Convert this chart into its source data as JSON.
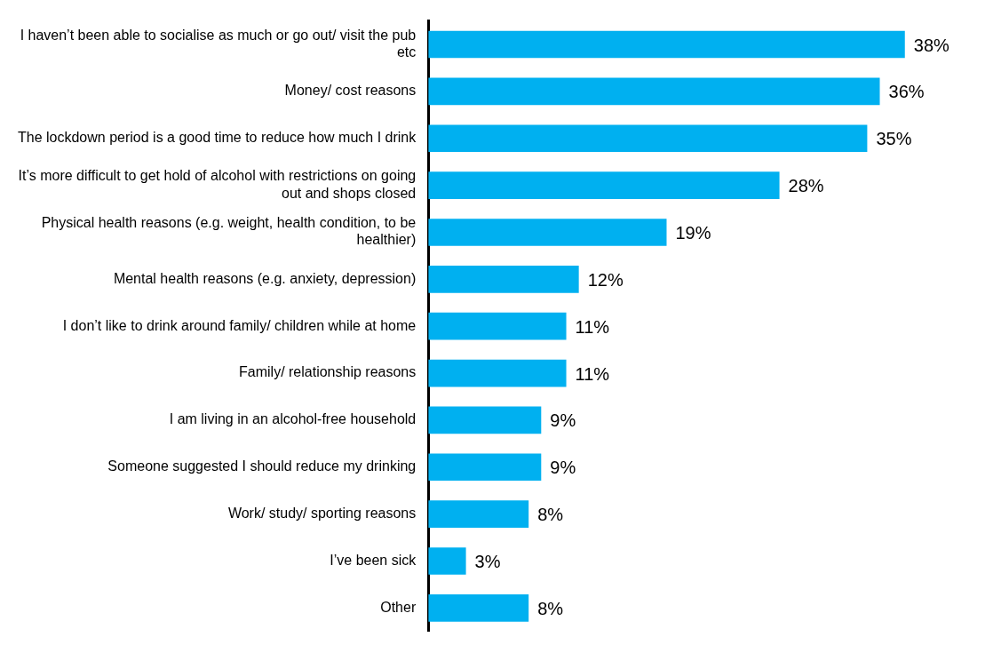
{
  "chart_data": {
    "type": "bar",
    "orientation": "horizontal",
    "categories": [
      "I haven’t been able to socialise as much or go out/ visit the pub etc",
      "Money/ cost reasons",
      "The lockdown period is a good time to reduce how much I drink",
      "It’s more difficult to get hold of alcohol with restrictions on going out and shops closed",
      "Physical health reasons (e.g. weight, health condition, to be healthier)",
      "Mental health reasons (e.g. anxiety, depression)",
      "I don’t like to drink around family/ children while at home",
      "Family/ relationship reasons",
      "I am living in an alcohol-free household",
      "Someone suggested I should reduce my drinking",
      "Work/ study/ sporting reasons",
      "I’ve been sick",
      "Other"
    ],
    "values": [
      38,
      36,
      35,
      28,
      19,
      12,
      11,
      11,
      9,
      9,
      8,
      3,
      8
    ],
    "value_labels": [
      "38%",
      "36%",
      "35%",
      "28%",
      "19%",
      "12%",
      "11%",
      "11%",
      "9%",
      "9%",
      "8%",
      "3%",
      "8%"
    ],
    "color": "#00b0f0",
    "legend": false
  }
}
